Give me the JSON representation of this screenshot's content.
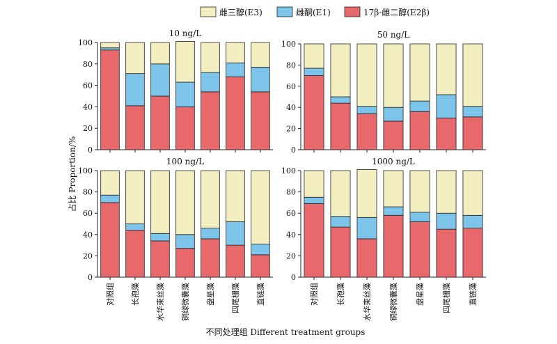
{
  "chart_data": {
    "type": "bar",
    "stacked": true,
    "ylabel": "占比 Proportion/%",
    "xlabel": "不同处理组  Different treatment groups",
    "ylim": [
      0,
      100
    ],
    "yticks": [
      0,
      20,
      40,
      60,
      80,
      100
    ],
    "categories": [
      "对照组",
      "长孢藻",
      "水华束丝藻",
      "铜绿微囊藻",
      "盘星藻",
      "四尾栅藻",
      "直链藻"
    ],
    "legend": [
      {
        "name": "雌三醇(E3)",
        "color": "#f3eebf"
      },
      {
        "name": "雌酮(E1)",
        "color": "#7cc4ea"
      },
      {
        "name": "17β-雌二醇(E2β)",
        "color": "#e8696b"
      }
    ],
    "panels": [
      {
        "title": "10 ng/L",
        "series": [
          {
            "name": "17β-雌二醇(E2β)",
            "values": [
              93,
              41,
              50,
              40,
              54,
              68,
              54
            ]
          },
          {
            "name": "雌酮(E1)",
            "values": [
              2,
              30,
              30,
              23,
              18,
              13,
              23
            ]
          },
          {
            "name": "雌三醇(E3)",
            "values": [
              5,
              29,
              20,
              38,
              28,
              19,
              23
            ]
          }
        ]
      },
      {
        "title": "50 ng/L",
        "series": [
          {
            "name": "17β-雌二醇(E2β)",
            "values": [
              70,
              44,
              34,
              27,
              36,
              30,
              31
            ]
          },
          {
            "name": "雌酮(E1)",
            "values": [
              7,
              6,
              7,
              13,
              10,
              22,
              10
            ]
          },
          {
            "name": "雌三醇(E3)",
            "values": [
              23,
              50,
              59,
              60,
              54,
              48,
              59
            ]
          }
        ]
      },
      {
        "title": "100 ng/L",
        "series": [
          {
            "name": "17β-雌二醇(E2β)",
            "values": [
              70,
              44,
              34,
              27,
              36,
              30,
              21
            ]
          },
          {
            "name": "雌酮(E1)",
            "values": [
              7,
              6,
              7,
              13,
              10,
              22,
              10
            ]
          },
          {
            "name": "雌三醇(E3)",
            "values": [
              23,
              50,
              59,
              60,
              54,
              48,
              69
            ]
          }
        ]
      },
      {
        "title": "1000 ng/L",
        "series": [
          {
            "name": "17β-雌二醇(E2β)",
            "values": [
              69,
              47,
              36,
              58,
              52,
              45,
              46
            ]
          },
          {
            "name": "雌酮(E1)",
            "values": [
              6,
              10,
              20,
              8,
              9,
              15,
              12
            ]
          },
          {
            "name": "雌三醇(E3)",
            "values": [
              25,
              43,
              45,
              34,
              39,
              40,
              42
            ]
          }
        ]
      }
    ]
  }
}
